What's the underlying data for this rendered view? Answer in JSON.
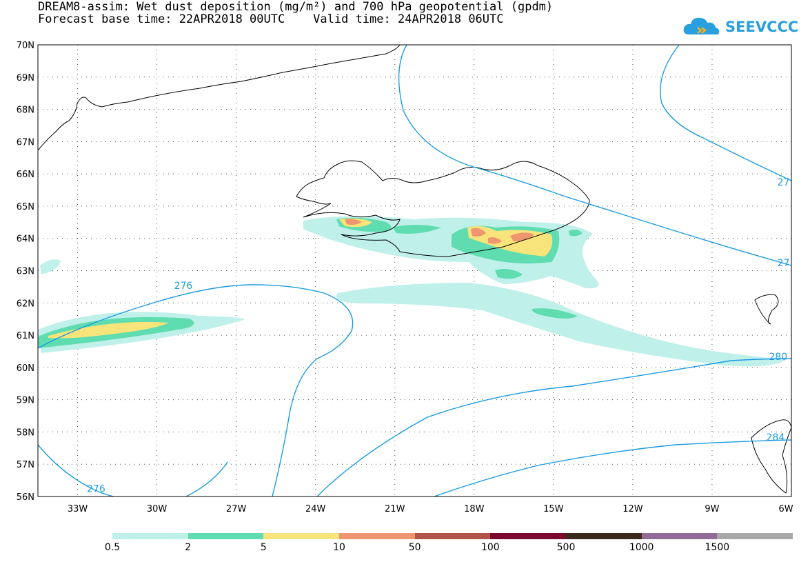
{
  "title_line1": "DREAM8-assim: Wet dust deposition (mg/m²) and 700 hPa geopotential (gpdm)",
  "title_line2": "Forecast base time: 22APR2018 00UTC    Valid time: 24APR2018 06UTC",
  "logo": {
    "text": "SEEVCCC",
    "icon": "cloud-icon",
    "color": "#2a9fe0"
  },
  "axes": {
    "lat": {
      "min": 56,
      "max": 70,
      "labels": [
        "70N",
        "69N",
        "68N",
        "67N",
        "66N",
        "65N",
        "64N",
        "63N",
        "62N",
        "61N",
        "60N",
        "59N",
        "58N",
        "57N",
        "56N"
      ]
    },
    "lon": {
      "min": -34.5,
      "max": -6,
      "labels": [
        "33W",
        "30W",
        "27W",
        "24W",
        "21W",
        "18W",
        "15W",
        "12W",
        "9W",
        "6W"
      ]
    },
    "grid": "dotted"
  },
  "contour_labels": [
    {
      "text": "276",
      "lon": -29.0,
      "lat": 62.5
    },
    {
      "text": "276",
      "lon": -32.3,
      "lat": 56.2
    },
    {
      "text": "280",
      "lon": -6.5,
      "lat": 60.3
    },
    {
      "text": "284",
      "lon": -6.6,
      "lat": 57.8
    },
    {
      "text": "27",
      "lon": -6.3,
      "lat": 65.7
    },
    {
      "text": "27",
      "lon": -6.3,
      "lat": 63.2
    }
  ],
  "legend": {
    "colors": [
      "#bff0ea",
      "#5fdcb0",
      "#f7e47a",
      "#ed9670",
      "#b05548",
      "#7a0a2e",
      "#3b2a1c",
      "#916a98",
      "#a8a8a8"
    ],
    "labels": [
      "0.5",
      "2",
      "5",
      "10",
      "50",
      "100",
      "500",
      "1000",
      "1500"
    ]
  }
}
